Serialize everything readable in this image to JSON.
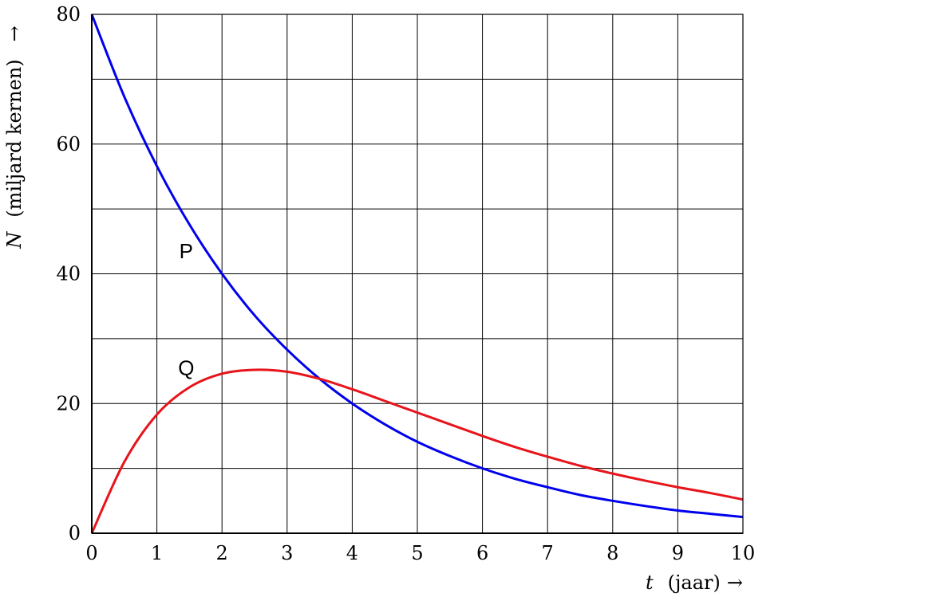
{
  "chart_data": {
    "type": "line",
    "xlabel": {
      "variable": "t",
      "unit": "(jaar)",
      "arrow": "→"
    },
    "ylabel": {
      "variable": "N",
      "unit": "(miljard kernen)",
      "arrow": "→"
    },
    "xlim": [
      0,
      10
    ],
    "ylim": [
      0,
      80
    ],
    "x_ticks": [
      "0",
      "1",
      "2",
      "3",
      "4",
      "5",
      "6",
      "7",
      "8",
      "9",
      "10"
    ],
    "y_ticks": [
      "0",
      "20",
      "40",
      "60",
      "80"
    ],
    "grid": {
      "x_step": 1,
      "y_step": 10
    },
    "series": [
      {
        "name": "P",
        "color": "#0000ee",
        "x": [
          0,
          0.5,
          1,
          1.5,
          2,
          2.5,
          3,
          3.5,
          4,
          4.5,
          5,
          5.5,
          6,
          6.5,
          7,
          7.5,
          8,
          8.5,
          9,
          9.5,
          10
        ],
        "y": [
          80,
          67.3,
          56.6,
          47.6,
          40,
          33.6,
          28.3,
          23.8,
          20,
          16.8,
          14.1,
          11.9,
          10,
          8.4,
          7.1,
          5.9,
          5,
          4.2,
          3.5,
          3.0,
          2.5
        ]
      },
      {
        "name": "Q",
        "color": "#e8141b",
        "x": [
          0,
          0.5,
          1,
          1.5,
          2,
          2.5,
          3,
          3.5,
          4,
          4.5,
          5,
          5.5,
          6,
          6.5,
          7,
          7.5,
          8,
          8.5,
          9,
          9.5,
          10
        ],
        "y": [
          0,
          11.0,
          18.3,
          22.5,
          24.6,
          25.2,
          24.9,
          23.8,
          22.2,
          20.4,
          18.6,
          16.8,
          15.0,
          13.3,
          11.8,
          10.4,
          9.2,
          8.1,
          7.1,
          6.2,
          5.2
        ]
      }
    ],
    "curve_labels": [
      {
        "text": "P",
        "x": 1.45,
        "y": 43.5
      },
      {
        "text": "Q",
        "x": 1.45,
        "y": 25.5
      }
    ]
  }
}
